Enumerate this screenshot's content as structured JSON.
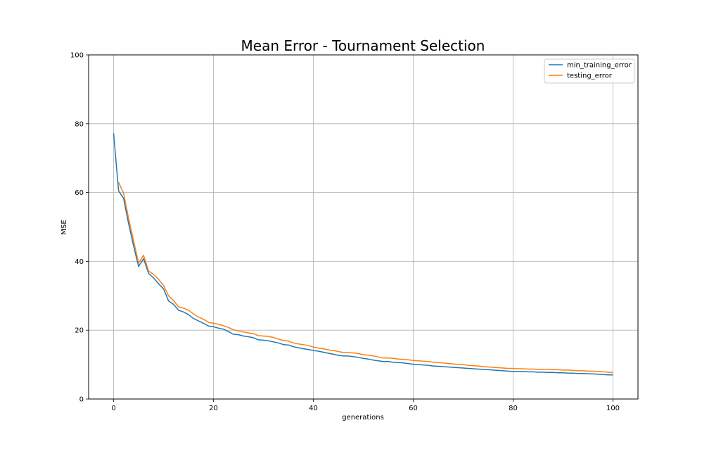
{
  "chart_data": {
    "type": "line",
    "title": "Mean Error - Tournament Selection",
    "xlabel": "generations",
    "ylabel": "MSE",
    "xlim": [
      -5,
      105
    ],
    "ylim": [
      0,
      100
    ],
    "xticks": [
      0,
      20,
      40,
      60,
      80,
      100
    ],
    "yticks": [
      0,
      20,
      40,
      60,
      80,
      100
    ],
    "grid": true,
    "legend_position": "upper right",
    "series": [
      {
        "name": "min_training_error",
        "color": "#1f77b4",
        "x": [
          0,
          1,
          2,
          3,
          4,
          5,
          6,
          7,
          8,
          9,
          10,
          11,
          12,
          13,
          14,
          15,
          16,
          17,
          18,
          19,
          20,
          21,
          22,
          23,
          24,
          25,
          26,
          27,
          28,
          29,
          30,
          31,
          32,
          33,
          34,
          35,
          36,
          37,
          38,
          39,
          40,
          41,
          42,
          43,
          44,
          45,
          46,
          47,
          48,
          49,
          50,
          51,
          52,
          53,
          54,
          55,
          56,
          57,
          58,
          59,
          60,
          61,
          62,
          63,
          64,
          65,
          66,
          67,
          68,
          69,
          70,
          71,
          72,
          73,
          74,
          75,
          76,
          77,
          78,
          79,
          80,
          81,
          82,
          83,
          84,
          85,
          86,
          87,
          88,
          89,
          90,
          91,
          92,
          93,
          94,
          95,
          96,
          97,
          98,
          99,
          100
        ],
        "values": [
          77.2,
          60.5,
          58.3,
          51.0,
          44.5,
          38.5,
          40.8,
          36.5,
          35.2,
          33.5,
          32.0,
          28.5,
          27.5,
          25.8,
          25.3,
          24.5,
          23.4,
          22.7,
          22.0,
          21.2,
          21.0,
          20.6,
          20.3,
          19.6,
          18.8,
          18.7,
          18.3,
          18.1,
          17.8,
          17.2,
          17.1,
          16.9,
          16.6,
          16.3,
          15.8,
          15.7,
          15.2,
          14.9,
          14.6,
          14.4,
          14.1,
          13.9,
          13.6,
          13.3,
          13.0,
          12.7,
          12.5,
          12.5,
          12.3,
          12.1,
          11.8,
          11.6,
          11.3,
          11.1,
          10.9,
          10.9,
          10.7,
          10.6,
          10.5,
          10.3,
          10.1,
          10.0,
          9.9,
          9.8,
          9.6,
          9.5,
          9.4,
          9.3,
          9.2,
          9.1,
          9.0,
          8.9,
          8.8,
          8.7,
          8.6,
          8.5,
          8.4,
          8.3,
          8.2,
          8.1,
          8.0,
          8.0,
          8.0,
          7.9,
          7.9,
          7.8,
          7.8,
          7.7,
          7.7,
          7.6,
          7.6,
          7.5,
          7.5,
          7.4,
          7.4,
          7.3,
          7.3,
          7.2,
          7.1,
          7.0,
          7.0
        ]
      },
      {
        "name": "testing_error",
        "color": "#ff7f0e",
        "x": [
          1,
          2,
          3,
          4,
          5,
          6,
          7,
          8,
          9,
          10,
          11,
          12,
          13,
          14,
          15,
          16,
          17,
          18,
          19,
          20,
          21,
          22,
          23,
          24,
          25,
          26,
          27,
          28,
          29,
          30,
          31,
          32,
          33,
          34,
          35,
          36,
          37,
          38,
          39,
          40,
          41,
          42,
          43,
          44,
          45,
          46,
          47,
          48,
          49,
          50,
          51,
          52,
          53,
          54,
          55,
          56,
          57,
          58,
          59,
          60,
          61,
          62,
          63,
          64,
          65,
          66,
          67,
          68,
          69,
          70,
          71,
          72,
          73,
          74,
          75,
          76,
          77,
          78,
          79,
          80,
          81,
          82,
          83,
          84,
          85,
          86,
          87,
          88,
          89,
          90,
          91,
          92,
          93,
          94,
          95,
          96,
          97,
          98,
          99,
          100
        ],
        "values": [
          63.0,
          59.8,
          52.5,
          46.0,
          39.5,
          41.8,
          37.2,
          36.2,
          34.8,
          33.0,
          30.0,
          28.6,
          26.8,
          26.4,
          25.8,
          24.7,
          23.8,
          23.2,
          22.3,
          22.0,
          21.7,
          21.3,
          20.8,
          20.1,
          19.8,
          19.5,
          19.2,
          19.0,
          18.4,
          18.3,
          18.2,
          17.9,
          17.4,
          17.0,
          16.8,
          16.3,
          16.0,
          15.8,
          15.5,
          15.1,
          14.8,
          14.6,
          14.3,
          14.1,
          13.8,
          13.5,
          13.5,
          13.4,
          13.2,
          12.9,
          12.7,
          12.5,
          12.2,
          11.9,
          11.9,
          11.8,
          11.6,
          11.5,
          11.4,
          11.2,
          11.1,
          11.0,
          10.9,
          10.7,
          10.6,
          10.5,
          10.3,
          10.2,
          10.0,
          10.0,
          9.8,
          9.7,
          9.6,
          9.4,
          9.3,
          9.2,
          9.1,
          9.0,
          8.9,
          8.9,
          8.8,
          8.8,
          8.7,
          8.7,
          8.6,
          8.6,
          8.6,
          8.5,
          8.5,
          8.4,
          8.4,
          8.3,
          8.2,
          8.2,
          8.1,
          8.1,
          8.0,
          7.9,
          7.8,
          7.7
        ]
      }
    ]
  }
}
